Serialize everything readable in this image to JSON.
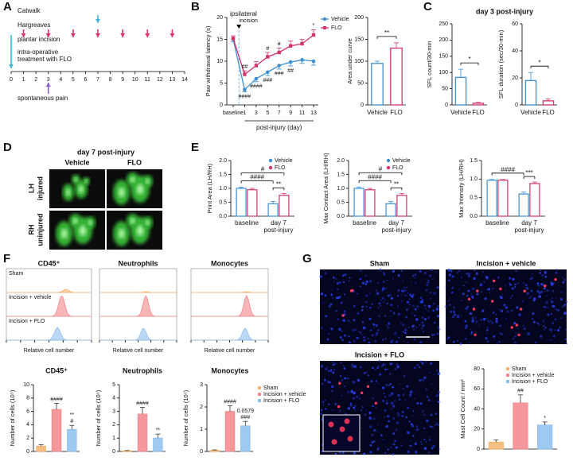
{
  "panel_labels": [
    "A",
    "B",
    "C",
    "D",
    "E",
    "F",
    "G"
  ],
  "timeline": {
    "rows": [
      "Catwalk",
      "Hargreaves",
      "plantar incision",
      [
        "intra-operative",
        "treatment with FLO"
      ],
      "spontaneous pain"
    ],
    "events": [
      [
        7
      ],
      [
        1,
        3,
        5,
        7,
        9,
        11,
        13
      ],
      [
        0
      ],
      null,
      [
        3
      ]
    ],
    "colors": [
      "#3bb8d6",
      "#d6336c",
      "#3bb8d6",
      null,
      "#8e5bc9"
    ],
    "ticks": [
      0,
      1,
      2,
      3,
      4,
      5,
      6,
      7,
      8,
      9,
      10,
      11,
      12,
      13,
      14
    ]
  },
  "footprints": {
    "title": "day 7 post-injury",
    "columns": [
      "Vehicle",
      "FLO"
    ],
    "rows": [
      [
        "LH",
        "injured"
      ],
      [
        "RH",
        "uninjured"
      ]
    ]
  },
  "flow": {
    "titles": [
      "CD45⁺",
      "Neutrophils",
      "Monocytes"
    ],
    "rows": [
      "Sham",
      "Incision + vehicle",
      "Incision + FLO"
    ],
    "xlabel": "Relative cell number"
  },
  "micrographs": {
    "titles": [
      "Sham",
      "Incision + vehicle",
      "Incision + FLO"
    ]
  },
  "chart_data": [
    {
      "type": "line",
      "ylabel": "Paw withdrawal latency (s)",
      "xlabel": "post-injury (day)",
      "annotations": [
        "ipsilateral",
        "incision"
      ],
      "categories": [
        "baseline",
        "1",
        "3",
        "5",
        "7",
        "9",
        "11",
        "13"
      ],
      "series": [
        {
          "name": "Vehicle",
          "color": "#3d8fd1",
          "values": [
            15,
            3.5,
            6,
            7.5,
            9,
            9.8,
            10.3,
            10
          ],
          "errors": [
            0.6,
            0.5,
            0.7,
            0.8,
            0.8,
            0.9,
            0.8,
            0.9
          ],
          "point_annotations": [
            null,
            "####",
            "####",
            "###",
            "###",
            "##",
            null,
            null
          ]
        },
        {
          "name": "FLO",
          "color": "#d1356b",
          "values": [
            15.2,
            7,
            9,
            11,
            12,
            13.5,
            14,
            16
          ],
          "errors": [
            0.6,
            0.8,
            0.9,
            1,
            1,
            1.1,
            1,
            1.2
          ],
          "point_annotations": [
            null,
            "##",
            null,
            "#",
            "#",
            null,
            null,
            "*"
          ]
        }
      ],
      "ylim": [
        0,
        20
      ],
      "yticks": [
        0,
        5,
        10,
        15,
        20
      ],
      "legend": "right"
    },
    {
      "type": "bar",
      "ylabel": "Area under curve",
      "categories": [
        "Vehicle",
        "FLO"
      ],
      "values": [
        95,
        130
      ],
      "errors": [
        5,
        12
      ],
      "colors": [
        "#3d8fd1",
        "#d1356b"
      ],
      "bar_fill": "outline",
      "ylim": [
        0,
        200
      ],
      "yticks": [
        0,
        50,
        100,
        150,
        200
      ],
      "significance": [
        "**"
      ]
    },
    {
      "type": "bar",
      "title": "day 3 post-injury",
      "ylabel": "SFL count/30-min",
      "categories": [
        "Vehicle",
        "FLO"
      ],
      "values": [
        85,
        5
      ],
      "errors": [
        25,
        3
      ],
      "colors": [
        "#3d8fd1",
        "#d1356b"
      ],
      "bar_fill": "outline",
      "ylim": [
        0,
        250
      ],
      "yticks": [
        0,
        50,
        100,
        150,
        200,
        250
      ],
      "significance": [
        "*"
      ]
    },
    {
      "type": "bar",
      "ylabel": "SFL duration (sec/30-min)",
      "categories": [
        "Vehicle",
        "FLO"
      ],
      "values": [
        18,
        3
      ],
      "errors": [
        6,
        1.5
      ],
      "colors": [
        "#3d8fd1",
        "#d1356b"
      ],
      "bar_fill": "outline",
      "ylim": [
        0,
        60
      ],
      "yticks": [
        0,
        20,
        40,
        60
      ],
      "significance": [
        "*"
      ]
    },
    {
      "type": "grouped_bar",
      "ylabel": "Print Area (LH/RH)",
      "categories": [
        [
          "baseline"
        ],
        [
          "day 7",
          "post-injury"
        ]
      ],
      "series": [
        {
          "name": "Vehicle",
          "color": "#3d8fd1",
          "values": [
            1.0,
            0.45
          ],
          "errors": [
            0.04,
            0.08
          ]
        },
        {
          "name": "FLO",
          "color": "#d1356b",
          "values": [
            0.95,
            0.75
          ],
          "errors": [
            0.05,
            0.07
          ]
        }
      ],
      "ylim": [
        0,
        2
      ],
      "yticks": [
        {
          "value": 0,
          "label": "0.0"
        },
        0.5,
        {
          "value": 1,
          "label": "1.0"
        },
        1.5,
        {
          "value": 2,
          "label": "2.0"
        }
      ],
      "legend": "upper right",
      "significance": [
        "####",
        "#",
        "**"
      ]
    },
    {
      "type": "grouped_bar",
      "ylabel": "Max Contact Area (LH/RH)",
      "categories": [
        [
          "baseline"
        ],
        [
          "day 7",
          "post-injury"
        ]
      ],
      "series": [
        {
          "name": "Vehicle",
          "color": "#3d8fd1",
          "values": [
            1.0,
            0.45
          ],
          "errors": [
            0.05,
            0.08
          ]
        },
        {
          "name": "FLO",
          "color": "#d1356b",
          "values": [
            0.95,
            0.75
          ],
          "errors": [
            0.05,
            0.07
          ]
        }
      ],
      "ylim": [
        0,
        2
      ],
      "yticks": [
        {
          "value": 0,
          "label": "0.0"
        },
        0.5,
        {
          "value": 1,
          "label": "1.0"
        },
        1.5,
        {
          "value": 2,
          "label": "2.0"
        }
      ],
      "legend": "upper right",
      "significance": [
        "####",
        "#",
        "**"
      ]
    },
    {
      "type": "grouped_bar",
      "ylabel": "Max Intensity (LH/RH)",
      "categories": [
        [
          "baseline"
        ],
        [
          "day 7",
          "post-injury"
        ]
      ],
      "series": [
        {
          "name": "Vehicle",
          "color": "#3d8fd1",
          "values": [
            0.97,
            0.6
          ],
          "errors": [
            0.02,
            0.05
          ]
        },
        {
          "name": "FLO",
          "color": "#d1356b",
          "values": [
            0.97,
            0.88
          ],
          "errors": [
            0.02,
            0.04
          ]
        }
      ],
      "ylim": [
        0,
        1.5
      ],
      "yticks": [
        {
          "value": 0,
          "label": "0.0"
        },
        0.5,
        {
          "value": 1,
          "label": "1.0"
        },
        1.5
      ],
      "significance": [
        "####",
        "***"
      ]
    },
    {
      "type": "bar",
      "title": "CD45⁺",
      "ylabel": "Number of cells (10⁵)",
      "values": [
        0.8,
        6.3,
        3.3
      ],
      "errors": [
        0.2,
        0.9,
        0.6
      ],
      "colors": [
        "#f6b26b",
        "#f4868a",
        "#8dbfee"
      ],
      "bar_fill": "solid",
      "ylim": [
        0,
        10
      ],
      "yticks": [
        0,
        2,
        4,
        6,
        8,
        10
      ],
      "bar_annotations": [
        null,
        [
          "####"
        ],
        [
          "**",
          "#"
        ]
      ]
    },
    {
      "type": "bar",
      "title": "Neutrophils",
      "ylabel": "Number of cells (10⁵)",
      "values": [
        0.05,
        2.8,
        1.0
      ],
      "errors": [
        0.02,
        0.5,
        0.3
      ],
      "colors": [
        "#f6b26b",
        "#f4868a",
        "#8dbfee"
      ],
      "bar_fill": "solid",
      "ylim": [
        0,
        5
      ],
      "yticks": [
        0,
        1,
        2,
        3,
        4,
        5
      ],
      "bar_annotations": [
        null,
        [
          "####"
        ],
        [
          "**"
        ]
      ]
    },
    {
      "type": "bar",
      "title": "Monocytes",
      "ylabel": "Number of cells (10⁵)",
      "categories": [
        "Sham",
        "Incision + vehicle",
        "Incision + FLO"
      ],
      "values": [
        0.05,
        1.8,
        1.15
      ],
      "errors": [
        0.02,
        0.25,
        0.2
      ],
      "colors": [
        "#f6b26b",
        "#f4868a",
        "#8dbfee"
      ],
      "bar_fill": "solid",
      "ylim": [
        0,
        3
      ],
      "yticks": [
        0,
        1,
        2,
        3
      ],
      "legend": "right",
      "bar_annotations": [
        null,
        [
          "####"
        ],
        [
          "0.0579",
          "###"
        ]
      ]
    },
    {
      "type": "bar",
      "ylabel": "Mast Cell Count / mm²",
      "categories": [
        "Sham",
        "Incision + vehicle",
        "Incision + FLO"
      ],
      "values": [
        7,
        46,
        24
      ],
      "errors": [
        2,
        8,
        3
      ],
      "colors": [
        "#f6b26b",
        "#f4868a",
        "#8dbfee"
      ],
      "bar_fill": "solid",
      "ylim": [
        0,
        80
      ],
      "yticks": [
        0,
        20,
        40,
        60,
        80
      ],
      "legend": "upper right",
      "bar_annotations": [
        null,
        [
          "##"
        ],
        [
          "*"
        ]
      ]
    }
  ]
}
